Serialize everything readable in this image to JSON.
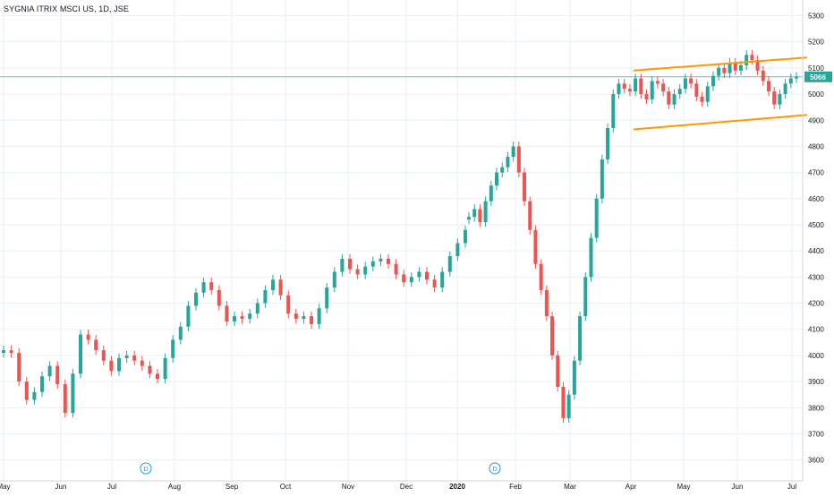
{
  "chart_data": {
    "type": "candlestick",
    "title": "SYGNIA ITRIX MSCI US, 1D, JSE",
    "last_price": "5066",
    "ylim": [
      3520,
      5360
    ],
    "y_ticks": [
      "3600",
      "3700",
      "3800",
      "3900",
      "4000",
      "4100",
      "4200",
      "4300",
      "4400",
      "4500",
      "4600",
      "4700",
      "4800",
      "4900",
      "5000",
      "5100",
      "5200",
      "5300"
    ],
    "x_ticks": [
      "May",
      "Jun",
      "Jul",
      "Aug",
      "Sep",
      "Oct",
      "Nov",
      "Dec",
      "2020",
      "Feb",
      "Mar",
      "Apr",
      "May",
      "Jun",
      "Jul"
    ],
    "bold_x_ticks": [
      "2020"
    ],
    "dividend_markers": [
      "D",
      "D"
    ],
    "grid": true,
    "colors": {
      "up": "#26a69a",
      "down": "#ef5350",
      "trendline": "#ff9800",
      "price_line": "#26a69a",
      "grid": "#e6f2f3"
    },
    "series": [
      {
        "name": "",
        "x": [
          0,
          1,
          2,
          3,
          4,
          5,
          6,
          7,
          8,
          9,
          10,
          11,
          12,
          13,
          14,
          15,
          16,
          17,
          18,
          19,
          20,
          21,
          22,
          23,
          24,
          25,
          26,
          27,
          28,
          29,
          30,
          31,
          32,
          33,
          34,
          35,
          36,
          37,
          38,
          39,
          40,
          41,
          42,
          43,
          44,
          45,
          46,
          47,
          48,
          49,
          50,
          51,
          52,
          53,
          54,
          55,
          56,
          57,
          58,
          59,
          60
        ],
        "y": [
          4020,
          4010,
          3900,
          3830,
          3860,
          3920,
          3960,
          3890,
          3780,
          3930,
          4080,
          4060,
          4020,
          3980,
          3940,
          3990,
          4000,
          3980,
          3960,
          3930,
          3910,
          3990,
          4060,
          4110,
          4190,
          4240,
          4280,
          4250,
          4190,
          4130,
          4150,
          4140,
          4160,
          4200,
          4250,
          4290,
          4230,
          4160,
          4140,
          4150,
          4120,
          4180,
          4260,
          4320,
          4370,
          4330,
          4310,
          4340,
          4360,
          4370,
          4350,
          4310,
          4280,
          4300,
          4320,
          4290,
          4260,
          4320,
          4380,
          4430,
          4480
        ]
      },
      {
        "name": "",
        "x": [
          61,
          62,
          63,
          64,
          65,
          66,
          67,
          68,
          69,
          70,
          71,
          72,
          73,
          74,
          75,
          76,
          77,
          78,
          79,
          80,
          81,
          82,
          83,
          84,
          85,
          86,
          87,
          88,
          89,
          90,
          91,
          92,
          93,
          94,
          95,
          96,
          97,
          98,
          99,
          100,
          101,
          102,
          103,
          104,
          105,
          106,
          107,
          108,
          109,
          110,
          111,
          112,
          113,
          114,
          115,
          116,
          117,
          118,
          119,
          120
        ],
        "y": [
          4530,
          4560,
          4510,
          4590,
          4650,
          4700,
          4720,
          4760,
          4800,
          4700,
          4590,
          4480,
          4350,
          4250,
          4150,
          4000,
          3880,
          3760,
          3850,
          3980,
          4150,
          4300,
          4450,
          4600,
          4750,
          4870,
          5000,
          5040,
          5020,
          5010,
          5060,
          5000,
          4980,
          5050,
          5040,
          5010,
          4960,
          5000,
          5020,
          5060,
          5040,
          4990,
          4970,
          5030,
          5070,
          5100,
          5080,
          5120,
          5090,
          5110,
          5150,
          5130,
          5090,
          5050,
          5010,
          4960,
          5000,
          5040,
          5060,
          5066
        ]
      }
    ],
    "annotations": [
      "Ascending channel drawn with two parallel orange trendlines"
    ]
  }
}
